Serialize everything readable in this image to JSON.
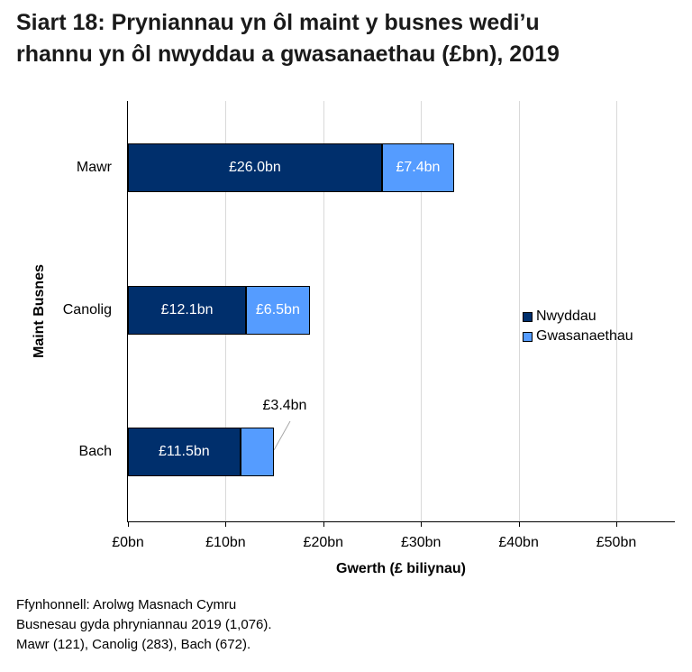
{
  "title": "Siart 18: Pryniannau yn ôl maint y busnes wedi’u rhannu yn ôl nwyddau a gwasanaethau (£bn), 2019",
  "title_lines": [
    "Siart 18: Pryniannau yn ôl maint y busnes wedi’u",
    "rhannu yn ôl nwyddau a gwasanaethau (£bn), 2019"
  ],
  "colors": {
    "goods": "#002f6c",
    "services": "#559cff"
  },
  "chart_data": {
    "type": "bar",
    "orientation": "horizontal",
    "stacked": true,
    "title": "Siart 18: Pryniannau yn ôl maint y busnes wedi’u rhannu yn ôl nwyddau a gwasanaethau (£bn), 2019",
    "categories": [
      "Mawr",
      "Canolig",
      "Bach"
    ],
    "series": [
      {
        "name": "Nwyddau",
        "values": [
          26.0,
          12.1,
          11.5
        ],
        "labels": [
          "£26.0bn",
          "£12.1bn",
          "£11.5bn"
        ]
      },
      {
        "name": "Gwasanaethau",
        "values": [
          7.4,
          6.5,
          3.4
        ],
        "labels": [
          "£7.4bn",
          "£6.5bn",
          "£3.4bn"
        ]
      }
    ],
    "xlabel": "Gwerth (£ biliynau)",
    "ylabel": "Maint Busnes",
    "xticks": [
      "£0bn",
      "£10bn",
      "£20bn",
      "£30bn",
      "£40bn",
      "£50bn"
    ],
    "xlim": [
      0,
      56
    ],
    "grid": "vertical",
    "legend_position": "right"
  },
  "legend": [
    "Nwyddau",
    "Gwasanaethau"
  ],
  "source": [
    "Ffynhonnell: Arolwg Masnach Cymru",
    "Busnesau gyda phryniannau 2019 (1,076).",
    "Mawr (121), Canolig (283), Bach (672)."
  ]
}
